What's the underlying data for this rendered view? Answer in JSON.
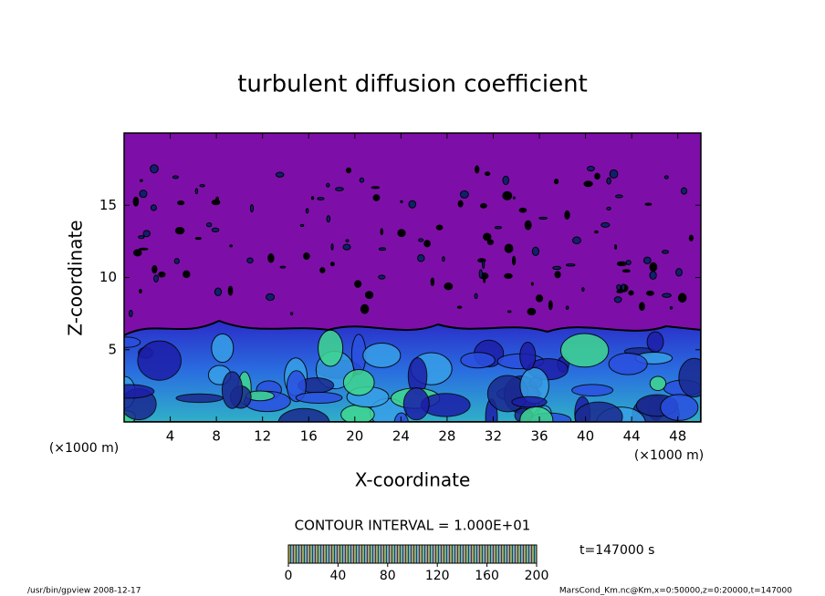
{
  "chart_data": {
    "type": "contour",
    "title": "turbulent diffusion coefficient",
    "xlabel": "X-coordinate",
    "ylabel": "Z-coordinate",
    "xunit": "(×1000 m)",
    "yunit": "(×1000 m)",
    "xlim": [
      0,
      50
    ],
    "xticks": [
      4,
      8,
      12,
      16,
      20,
      24,
      28,
      32,
      36,
      40,
      44,
      48
    ],
    "ylim": [
      0,
      20
    ],
    "yticks": [
      5,
      10,
      15
    ],
    "contour_interval": "CONTOUR INTERVAL = 1.000E+01",
    "time_label": "t=147000 s",
    "colorbar": {
      "lim": [
        0,
        200
      ],
      "ticks": [
        0,
        40,
        80,
        120,
        160,
        200
      ]
    },
    "footer_left": "/usr/bin/gpview  2008-12-17",
    "footer_right": "MarsCond_Km.nc@Km,x=0:50000,z=0:20000,t=147000"
  }
}
